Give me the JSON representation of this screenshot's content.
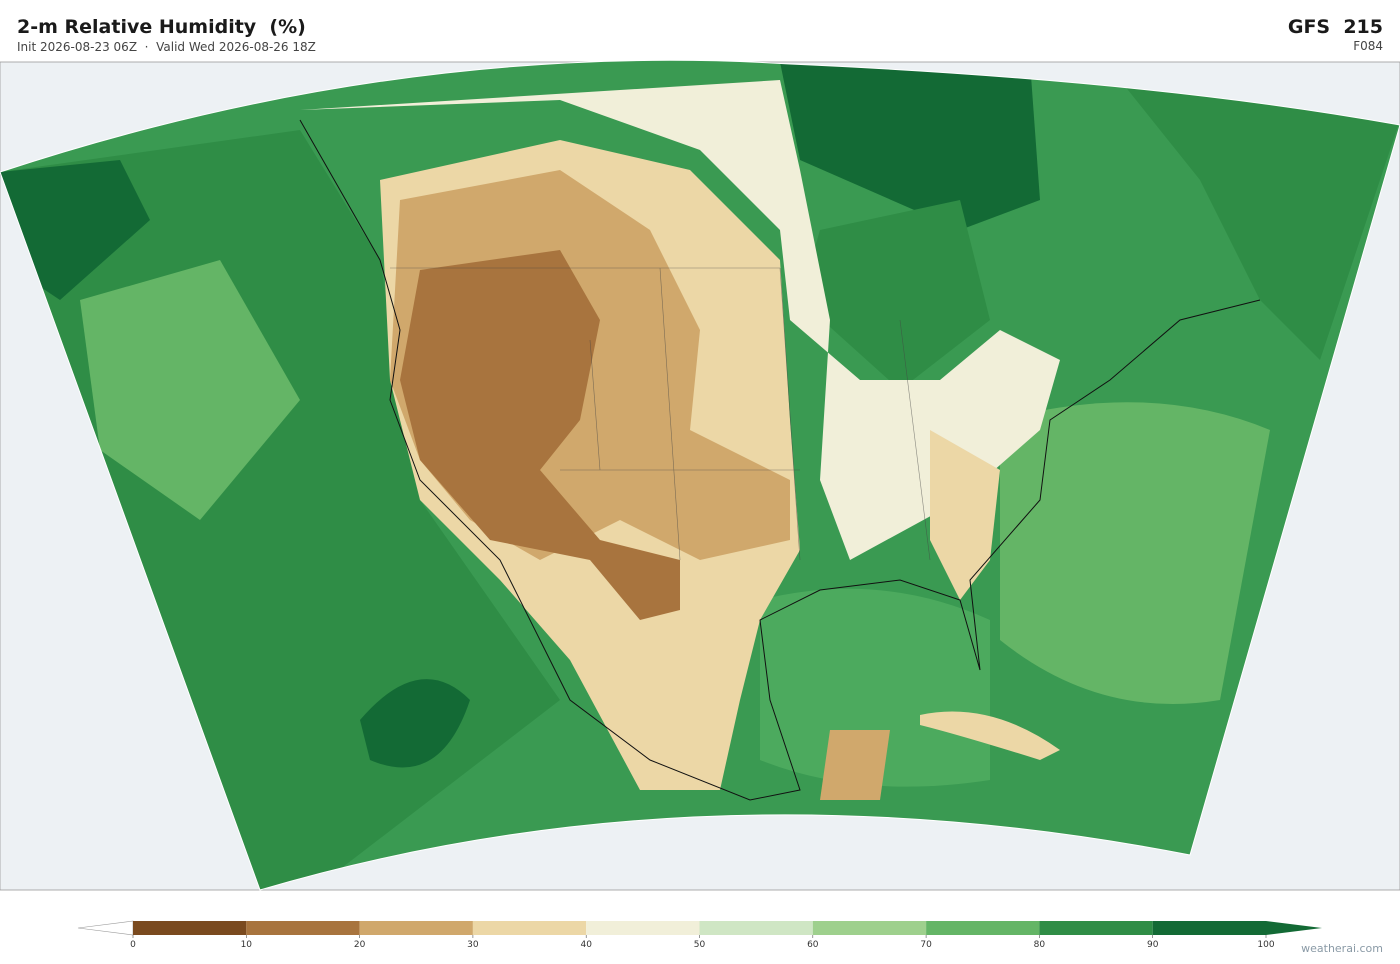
{
  "header": {
    "title": "2-m Relative Humidity  (%)",
    "subtitle": "Init 2026-08-23 06Z  ·  Valid Wed 2026-08-26 18Z",
    "model": "GFS  215",
    "forecast_hour": "F084"
  },
  "colorbar": {
    "ticks": [
      0,
      10,
      20,
      30,
      40,
      50,
      60,
      70,
      80,
      90,
      100
    ],
    "colors": [
      "#7a4a1f",
      "#a8743e",
      "#d0a86c",
      "#ecd7a6",
      "#f1efd9",
      "#cfe6c4",
      "#9ed08d",
      "#64b566",
      "#2f8d46",
      "#136a35"
    ]
  },
  "footer": {
    "credit": "weatherai.com"
  }
}
